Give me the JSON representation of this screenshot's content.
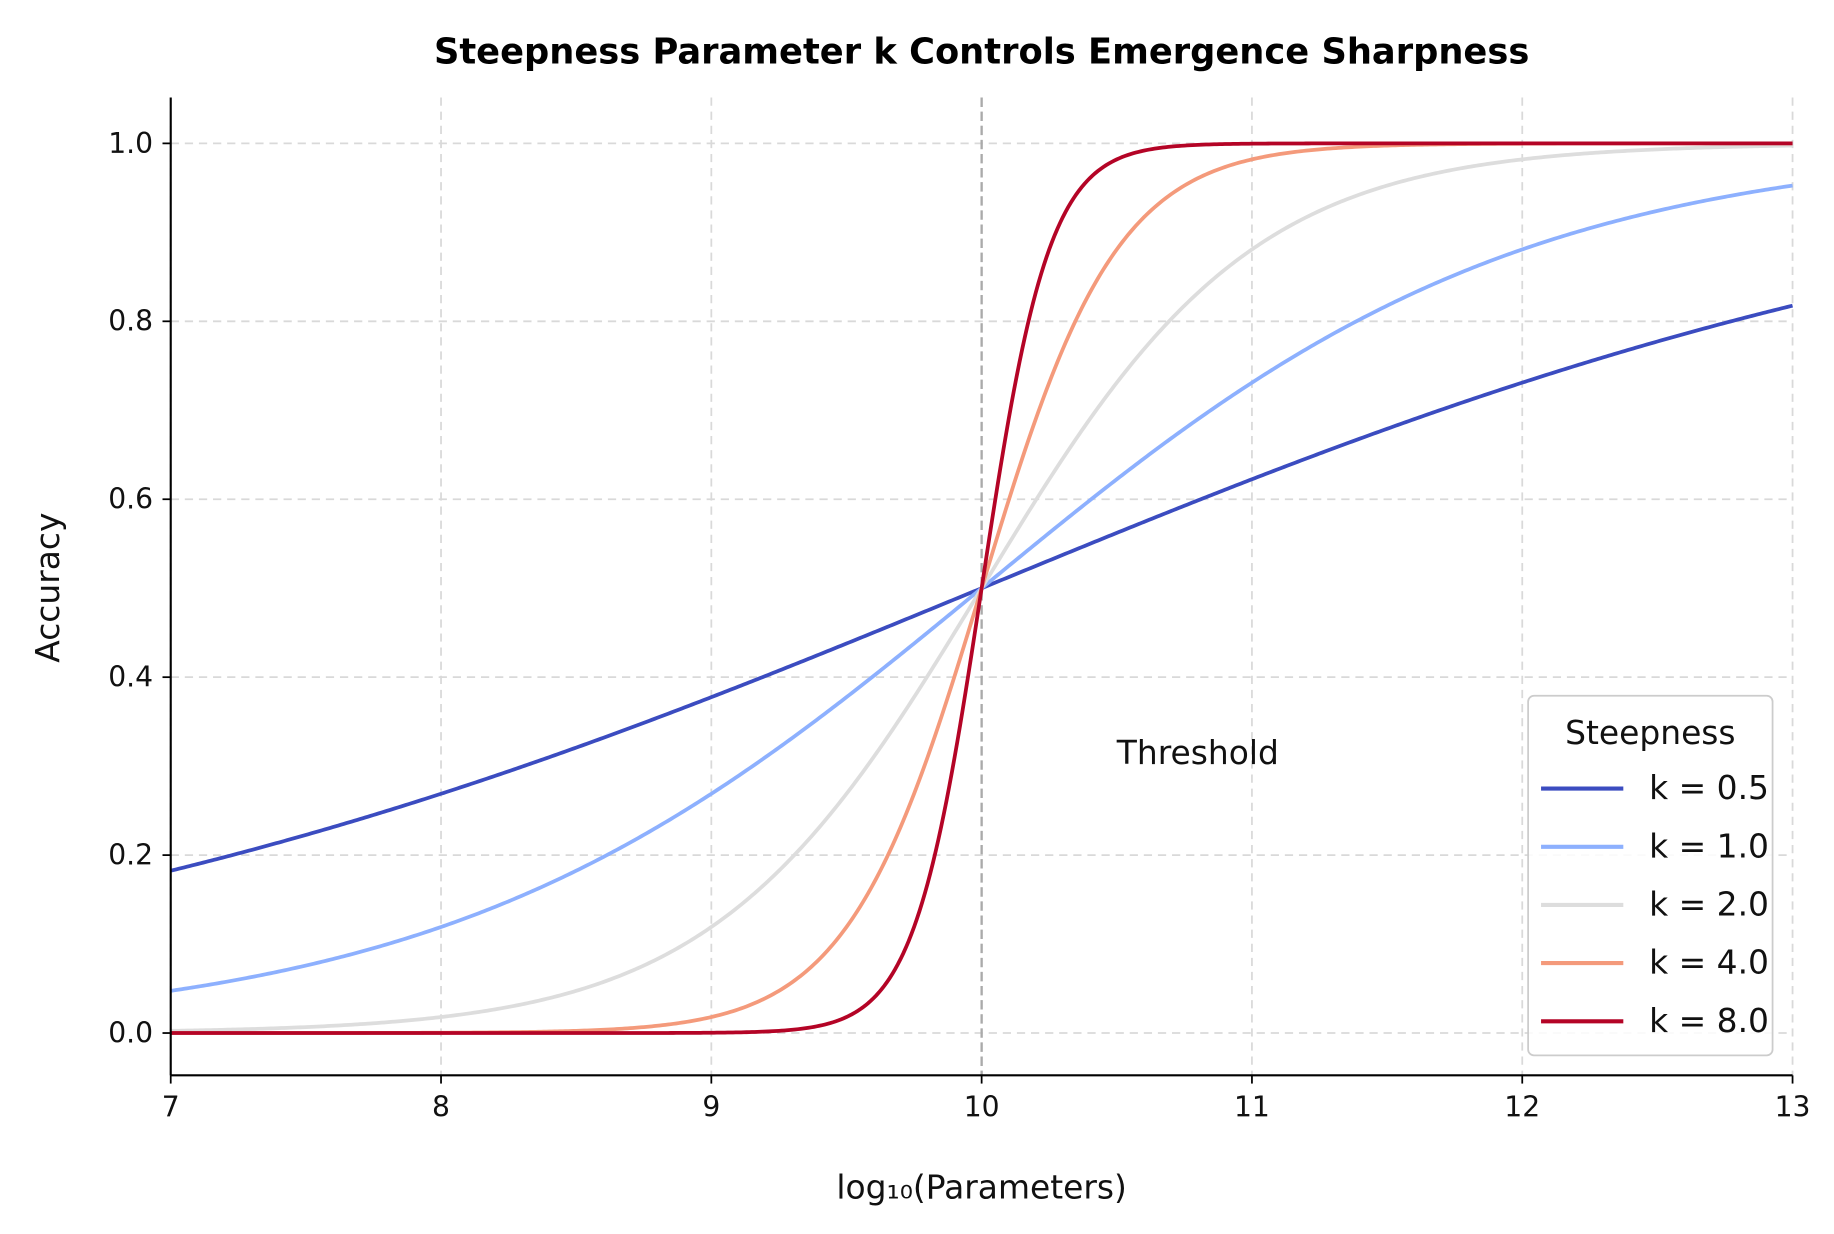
{
  "chart_data": {
    "type": "line",
    "title": "Steepness Parameter k Controls Emergence Sharpness",
    "xlabel": "log₁₀(Parameters)",
    "ylabel": "Accuracy",
    "xlim": [
      7,
      13
    ],
    "ylim": [
      -0.05,
      1.05
    ],
    "xticks": [
      "7",
      "8",
      "9",
      "10",
      "11",
      "12",
      "13"
    ],
    "yticks": [
      "0.0",
      "0.2",
      "0.4",
      "0.6",
      "0.8",
      "1.0"
    ],
    "grid": true,
    "function": "accuracy = 1 / (1 + exp(-k * (x - 10)))",
    "threshold": {
      "x": 10,
      "label": "Threshold",
      "color": "#aaaaaa"
    },
    "legend": {
      "title": "Steepness",
      "placement": "lower-right"
    },
    "series": [
      {
        "name": "k = 0.5",
        "k": 0.5,
        "color": "#3b4cc0"
      },
      {
        "name": "k = 1.0",
        "k": 1.0,
        "color": "#8db0fe"
      },
      {
        "name": "k = 2.0",
        "k": 2.0,
        "color": "#dddddd"
      },
      {
        "name": "k = 4.0",
        "k": 4.0,
        "color": "#f49a7b"
      },
      {
        "name": "k = 8.0",
        "k": 8.0,
        "color": "#b40426"
      }
    ]
  }
}
